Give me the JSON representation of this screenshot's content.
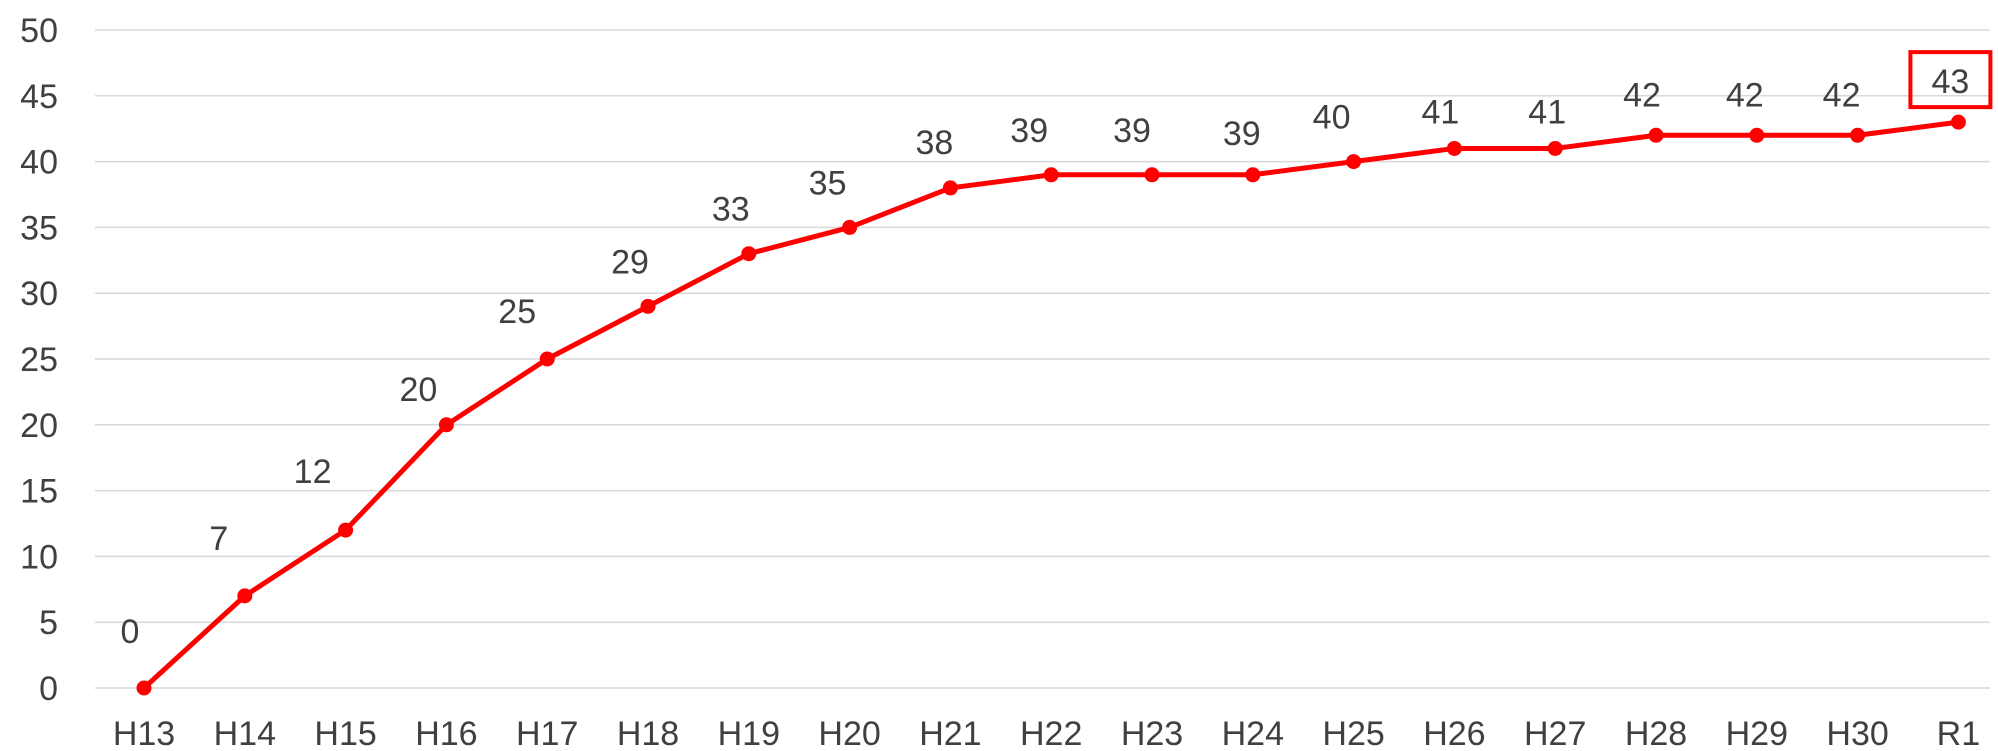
{
  "chart_data": {
    "type": "line",
    "title": "",
    "xlabel": "",
    "ylabel": "",
    "categories": [
      "H13",
      "H14",
      "H15",
      "H16",
      "H17",
      "H18",
      "H19",
      "H20",
      "H21",
      "H22",
      "H23",
      "H24",
      "H25",
      "H26",
      "H27",
      "H28",
      "H29",
      "H30",
      "R1"
    ],
    "series": [
      {
        "values": [
          0,
          7,
          12,
          20,
          25,
          29,
          33,
          35,
          38,
          39,
          39,
          39,
          40,
          41,
          41,
          42,
          42,
          42,
          43
        ],
        "color": "#ff0000"
      }
    ],
    "y_ticks": [
      0,
      5,
      10,
      15,
      20,
      25,
      30,
      35,
      40,
      45,
      50
    ],
    "ylim": [
      0,
      50
    ],
    "grid": true,
    "legend": "none",
    "highlighted_point": "R1",
    "colors": {
      "series": "#ff0000",
      "grid": "#d9d9d9",
      "text": "#404040",
      "highlight_box": "#ff0000"
    }
  }
}
